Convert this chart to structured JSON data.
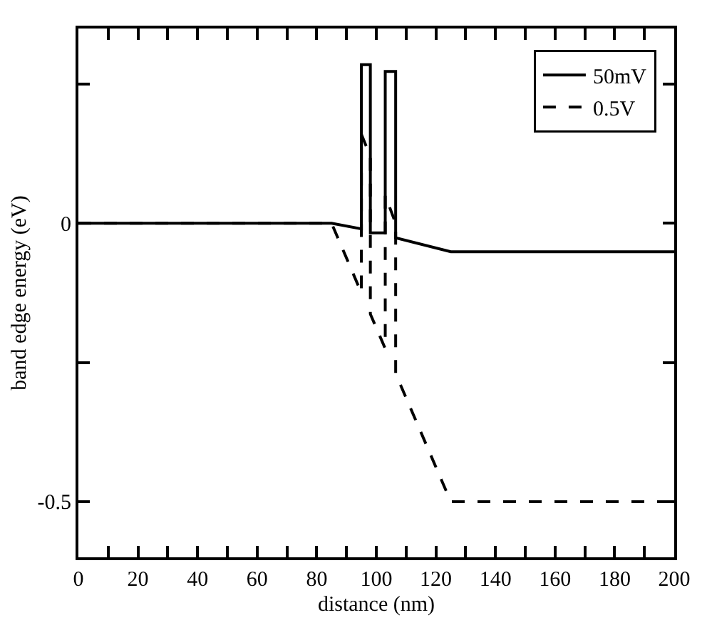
{
  "chart_data": {
    "type": "line",
    "xlabel": "distance (nm)",
    "ylabel": "band edge energy (eV)",
    "xlim": [
      0,
      200
    ],
    "ylim": [
      -0.6,
      0.35
    ],
    "xticks": [
      0,
      {
        "value": 10,
        "label": null
      },
      20,
      {
        "value": 30,
        "label": null
      },
      40,
      {
        "value": 50,
        "label": null
      },
      60,
      {
        "value": 70,
        "label": null
      },
      80,
      {
        "value": 90,
        "label": null
      },
      100,
      {
        "value": 110,
        "label": null
      },
      120,
      {
        "value": 130,
        "label": null
      },
      140,
      {
        "value": 150,
        "label": null
      },
      160,
      {
        "value": 170,
        "label": null
      },
      180,
      {
        "value": 190,
        "label": null
      },
      200
    ],
    "yticks": [
      {
        "value": -0.5,
        "label": "-0.5"
      },
      {
        "value": -0.25,
        "label": null
      },
      0,
      {
        "value": 0.25,
        "label": null
      }
    ],
    "grid": false,
    "legend": "top right",
    "series": [
      {
        "name": "50mV",
        "color": "#000000",
        "line_style": "solid",
        "x": [
          0,
          85,
          95,
          95,
          98,
          98,
          103,
          103,
          106.5,
          106.5,
          125,
          200
        ],
        "values": [
          0,
          0,
          -0.01,
          0.285,
          0.285,
          -0.017,
          -0.017,
          0.273,
          0.273,
          -0.026,
          -0.051,
          -0.051
        ]
      },
      {
        "name": "0.5V",
        "color": "#000000",
        "line_style": "dashed",
        "x": [
          0,
          85,
          95,
          95,
          98,
          98,
          103,
          103,
          106.5,
          106.5,
          125,
          200
        ],
        "values": [
          0,
          0,
          -0.125,
          0.16,
          0.12,
          -0.163,
          -0.225,
          0.05,
          0,
          -0.27,
          -0.5,
          -0.5
        ]
      }
    ]
  }
}
